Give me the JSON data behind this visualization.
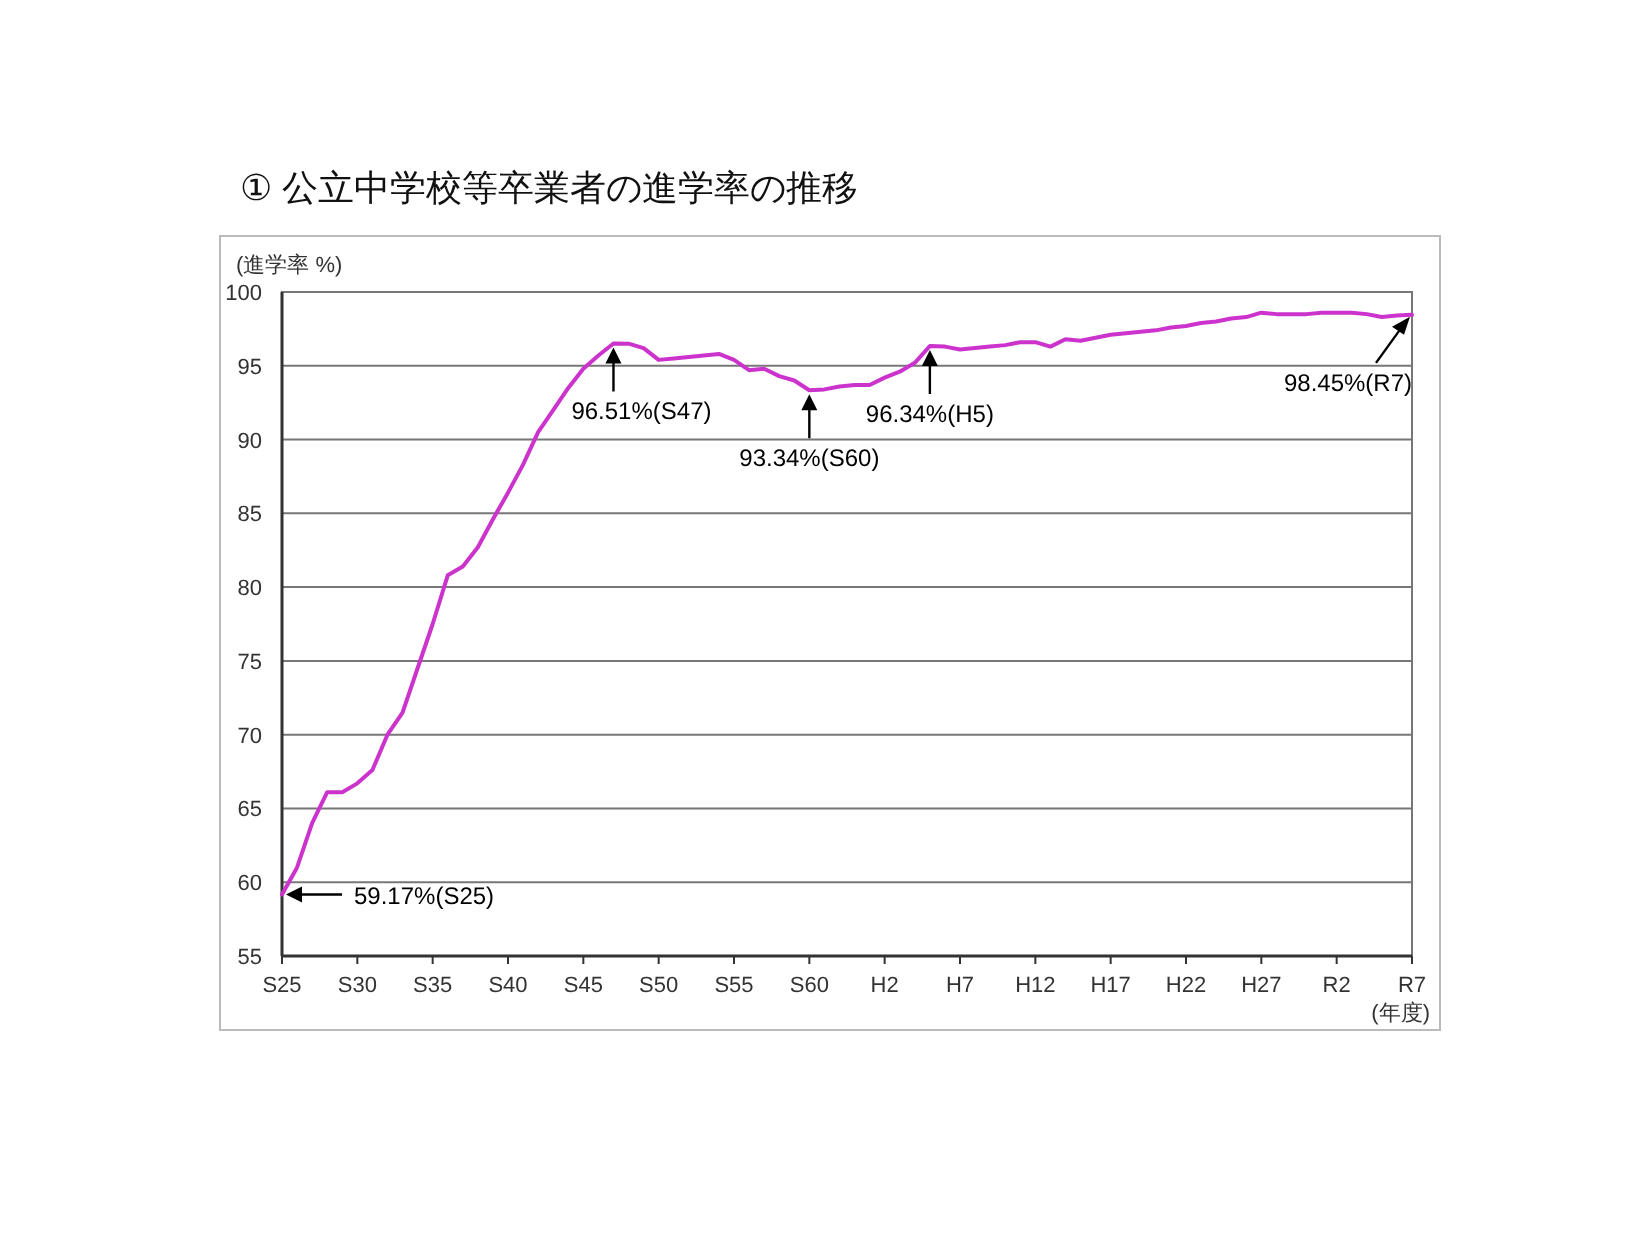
{
  "chart_data": {
    "type": "line",
    "title": "① 公立中学校等卒業者の進学率の推移",
    "ylabel": "(進学率 %)",
    "xlabel": "(年度)",
    "categories": [
      "S25",
      null,
      null,
      null,
      null,
      "S30",
      null,
      null,
      null,
      null,
      "S35",
      null,
      null,
      null,
      null,
      "S40",
      null,
      null,
      null,
      null,
      "S45",
      null,
      null,
      null,
      null,
      "S50",
      null,
      null,
      null,
      null,
      "S55",
      null,
      null,
      null,
      null,
      "S60",
      null,
      null,
      null,
      null,
      "H2",
      null,
      null,
      null,
      null,
      "H7",
      null,
      null,
      null,
      null,
      "H12",
      null,
      null,
      null,
      null,
      "H17",
      null,
      null,
      null,
      null,
      "H22",
      null,
      null,
      null,
      null,
      "H27",
      null,
      null,
      null,
      null,
      "R2",
      null,
      null,
      null,
      null,
      "R7"
    ],
    "series": [
      {
        "color": "#cc33cc",
        "values": [
          59.17,
          61,
          64,
          66.1,
          66.1,
          66.7,
          67.6,
          70,
          71.5,
          74.5,
          77.5,
          80.8,
          81.4,
          82.7,
          84.6,
          86.4,
          88.3,
          90.5,
          92,
          93.5,
          94.8,
          95.7,
          96.51,
          96.5,
          96.2,
          95.4,
          95.5,
          95.6,
          95.7,
          95.8,
          95.4,
          94.7,
          94.8,
          94.3,
          94,
          93.34,
          93.4,
          93.6,
          93.7,
          93.7,
          94.2,
          94.6,
          95.2,
          96.34,
          96.3,
          96.1,
          96.2,
          96.3,
          96.4,
          96.6,
          96.6,
          96.3,
          96.8,
          96.7,
          96.9,
          97.1,
          97.2,
          97.3,
          97.4,
          97.6,
          97.7,
          97.9,
          98,
          98.2,
          98.3,
          98.6,
          98.5,
          98.5,
          98.5,
          98.6,
          98.6,
          98.6,
          98.5,
          98.3,
          98.4,
          98.45
        ]
      }
    ],
    "ylim": [
      55,
      100
    ],
    "yticks": [
      55,
      60,
      65,
      70,
      75,
      80,
      85,
      90,
      95,
      100
    ],
    "grid": "y",
    "marker": "none",
    "line_style": "solid",
    "annotations": [
      {
        "text": "59.17%(S25)",
        "x": "S25",
        "y": 59.17
      },
      {
        "text": "96.51%(S47)",
        "y": 96.51
      },
      {
        "text": "93.34%(S60)",
        "x": "S60",
        "y": 93.34
      },
      {
        "text": "96.34%(H5)",
        "y": 96.34
      },
      {
        "text": "98.45%(R7)",
        "x": "R7",
        "y": 98.45
      }
    ]
  }
}
